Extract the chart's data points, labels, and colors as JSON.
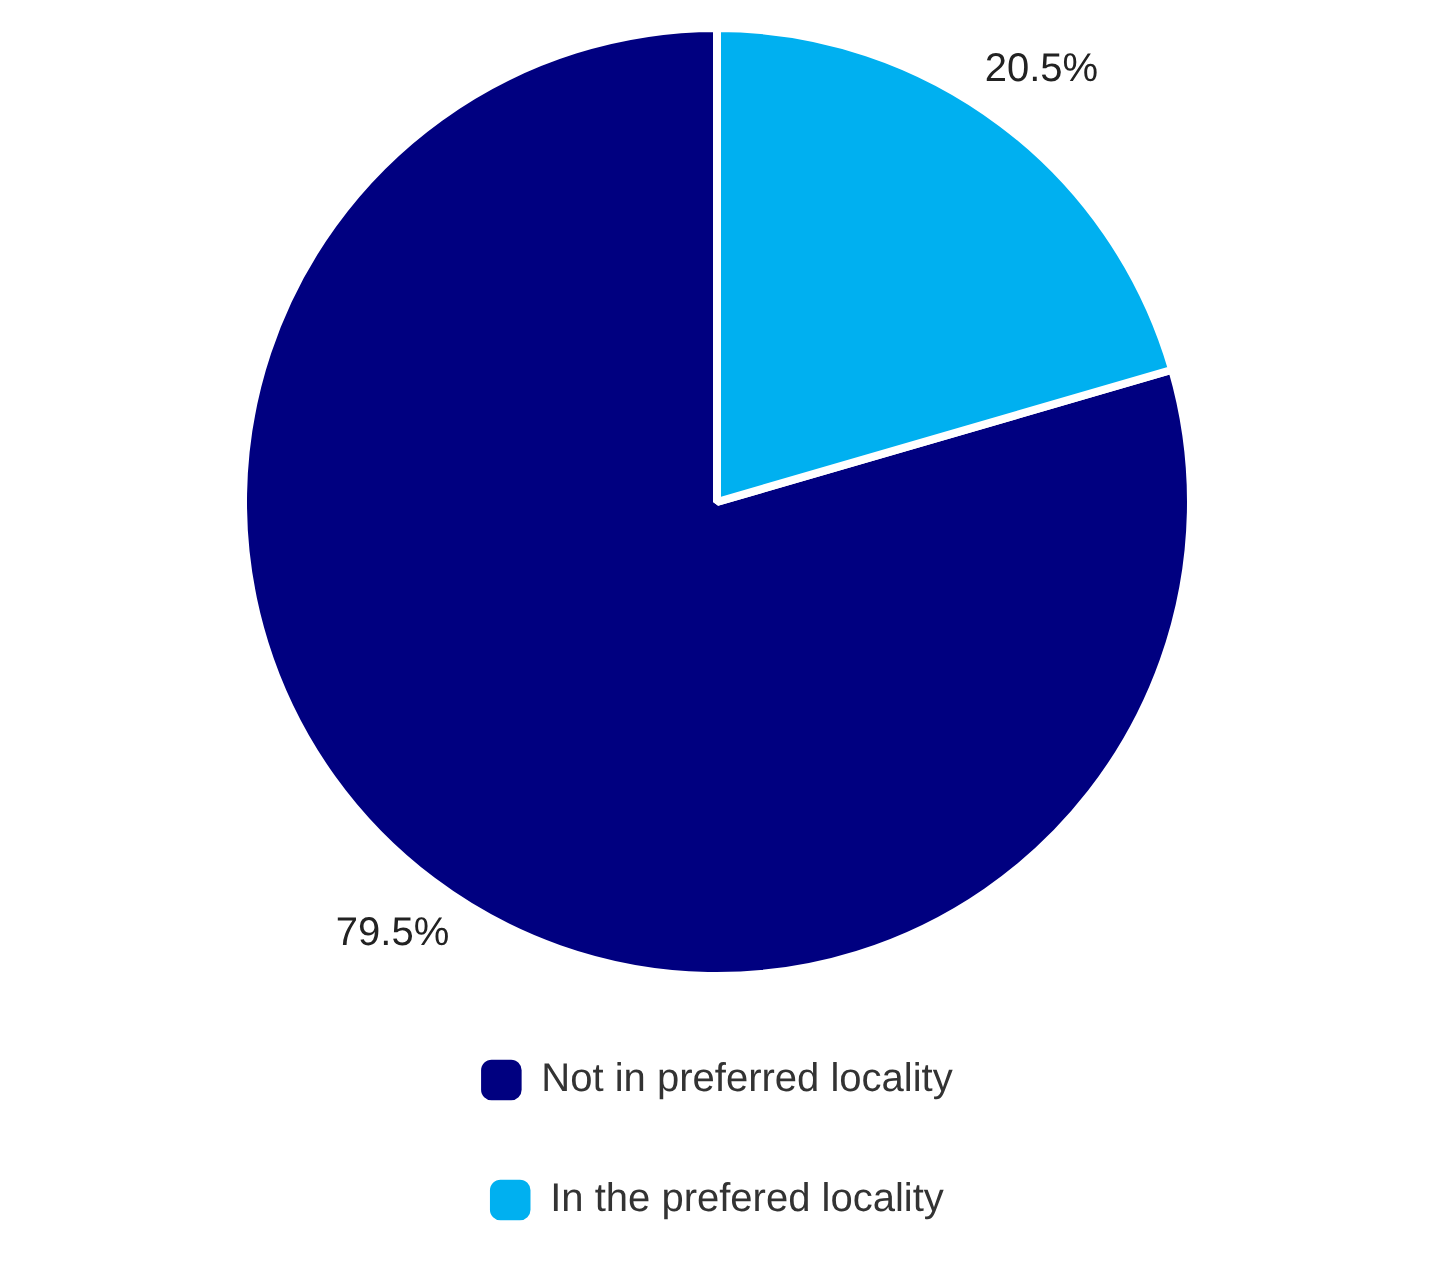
{
  "chart_data": {
    "type": "pie",
    "categories": [
      "Not in preferred locality",
      "In the prefered locality"
    ],
    "values": [
      79.5,
      20.5
    ],
    "colors": [
      "#000080",
      "#00b0f0"
    ],
    "legend": "bottom",
    "value_labels": [
      "79.5%",
      "20.5%"
    ]
  }
}
